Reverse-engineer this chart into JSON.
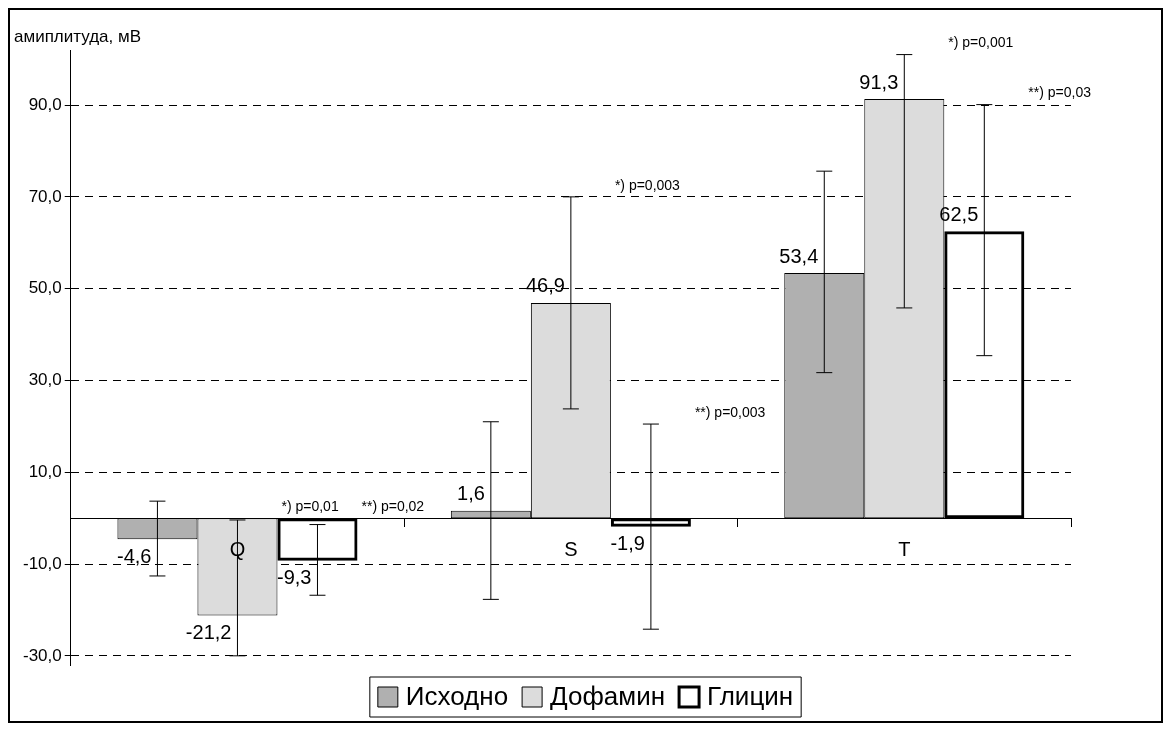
{
  "chart_data": {
    "type": "bar",
    "ylabel": "амиплитуда, мВ",
    "categories": [
      "Q",
      "S",
      "T"
    ],
    "series": [
      {
        "name": "Исходно",
        "color": "#b0b0b0",
        "values": [
          -4.6,
          1.6,
          53.4
        ],
        "value_labels": [
          "-4,6",
          "1,6",
          "53,4"
        ],
        "errors": [
          [
            -12.6,
            3.7
          ],
          [
            -17.7,
            21.0
          ],
          [
            31.7,
            75.6
          ]
        ]
      },
      {
        "name": "Дофамин",
        "color": "#dcdcdc",
        "values": [
          -21.2,
          46.9,
          91.3
        ],
        "value_labels": [
          "-21,2",
          "46,9",
          "91,3"
        ],
        "errors": [
          [
            -30.0,
            -0.4
          ],
          [
            23.8,
            70.0
          ],
          [
            45.8,
            101.0
          ]
        ]
      },
      {
        "name": "Глицин",
        "color": "#000000",
        "values": [
          -9.3,
          -1.9,
          62.5
        ],
        "value_labels": [
          "-9,3",
          "-1,9",
          "62,5"
        ],
        "errors": [
          [
            -16.8,
            -1.4
          ],
          [
            -24.2,
            20.5
          ],
          [
            35.4,
            90.1
          ]
        ]
      }
    ],
    "ylim": [
      -32,
      102
    ],
    "yticks": [
      {
        "value": -30,
        "label": "-30,0"
      },
      {
        "value": -10,
        "label": "-10,0"
      },
      {
        "value": 10,
        "label": "10,0"
      },
      {
        "value": 30,
        "label": "30,0"
      },
      {
        "value": 50,
        "label": "50,0"
      },
      {
        "value": 70,
        "label": "70,0"
      },
      {
        "value": 90,
        "label": "90,0"
      }
    ],
    "grid": "y",
    "legend": "bottom",
    "annotations": [
      "*) p=0,01",
      "**) p=0,02",
      "*) p=0,003",
      "**) p=0,003",
      "*) p=0,001",
      "**) p=0,03"
    ]
  }
}
